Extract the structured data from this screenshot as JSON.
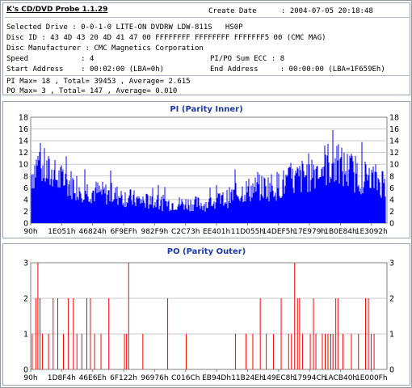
{
  "app_title": "K's CD/DVD Probe 1.1.29",
  "create_date_label": "Create Date",
  "create_date_value": ": 2004-07-05 20:18:48",
  "selected_drive": "Selected Drive : 0-0-1-0 LITE-ON DVDRW LDW-811S   HS0P",
  "disc_id": "Disc ID : 43 4D 43 20 4D 41 47 00 FFFFFFFF FFFFFFFF FFFFFFF5 00 (CMC MAG)",
  "disc_manufacturer": "Disc Manufacturer : CMC Magnetics Corporation",
  "speed": "Speed            : 4",
  "pipo_sum": "PI/PO Sum ECC : 8",
  "start_address": "Start Address    : 00:02:00 (LBA=0h)",
  "end_address": "End Address     : 00:00:00 (LBA=1F659Eh)",
  "pi_stats": "PI Max= 18 , Total= 39453 , Average= 2.615",
  "po_stats": "PO Max= 3 , Total= 147 , Average= 0.010",
  "colors": {
    "pi_bar": "#0000ff",
    "po_line": "#ff0000",
    "title": "#1b3aa8",
    "grid": "#c8c8c8"
  },
  "chart_data": [
    {
      "type": "bar",
      "title": "PI (Parity Inner)",
      "ylim": [
        0,
        18
      ],
      "yticks": [
        0,
        2,
        4,
        6,
        8,
        10,
        12,
        14,
        16,
        18
      ],
      "xticks": [
        "90h",
        "1E051h",
        "46824h",
        "6F9EFh",
        "982F9h",
        "C2C73h",
        "EE401h",
        "11D055h",
        "14DEF5h",
        "17E979h",
        "1B0E84h",
        "1E3092h"
      ],
      "grid": true,
      "color": "#0000ff",
      "profile": [
        [
          0.0,
          9
        ],
        [
          0.02,
          11
        ],
        [
          0.05,
          9
        ],
        [
          0.08,
          8
        ],
        [
          0.12,
          7
        ],
        [
          0.16,
          6
        ],
        [
          0.2,
          5.5
        ],
        [
          0.25,
          5
        ],
        [
          0.3,
          4.2
        ],
        [
          0.35,
          3.8
        ],
        [
          0.4,
          3.6
        ],
        [
          0.45,
          3.6
        ],
        [
          0.5,
          3.5
        ],
        [
          0.55,
          4.5
        ],
        [
          0.6,
          6
        ],
        [
          0.65,
          6.5
        ],
        [
          0.7,
          7
        ],
        [
          0.75,
          8
        ],
        [
          0.8,
          10
        ],
        [
          0.84,
          11
        ],
        [
          0.88,
          10
        ],
        [
          0.92,
          9
        ],
        [
          0.96,
          8
        ],
        [
          1.0,
          7.5
        ]
      ]
    },
    {
      "type": "bar",
      "title": "PO (Parity Outer)",
      "ylim": [
        0,
        3
      ],
      "yticks": [
        0,
        1,
        2,
        3
      ],
      "xticks": [
        "90h",
        "1D8F4h",
        "46E6Eh",
        "6F122h",
        "96976h",
        "C016Ch",
        "EB94Dh",
        "11B24Eh",
        "149EC8h",
        "17994Ch",
        "1ACB40h",
        "1E000Fh"
      ],
      "grid": true,
      "color": "#ff0000",
      "spikes": [
        [
          0.002,
          1
        ],
        [
          0.012,
          2
        ],
        [
          0.018,
          3
        ],
        [
          0.024,
          2
        ],
        [
          0.031,
          1
        ],
        [
          0.048,
          1
        ],
        [
          0.061,
          2
        ],
        [
          0.074,
          2
        ],
        [
          0.09,
          1
        ],
        [
          0.104,
          2
        ],
        [
          0.118,
          2
        ],
        [
          0.128,
          1
        ],
        [
          0.142,
          1
        ],
        [
          0.156,
          2
        ],
        [
          0.166,
          2
        ],
        [
          0.178,
          1
        ],
        [
          0.196,
          1
        ],
        [
          0.218,
          2
        ],
        [
          0.262,
          1
        ],
        [
          0.268,
          1
        ],
        [
          0.274,
          3
        ],
        [
          0.314,
          1
        ],
        [
          0.384,
          2
        ],
        [
          0.436,
          1
        ],
        [
          0.575,
          1
        ],
        [
          0.605,
          1
        ],
        [
          0.624,
          1
        ],
        [
          0.645,
          2
        ],
        [
          0.662,
          1
        ],
        [
          0.682,
          1
        ],
        [
          0.704,
          2
        ],
        [
          0.725,
          1
        ],
        [
          0.733,
          1
        ],
        [
          0.742,
          3
        ],
        [
          0.75,
          2
        ],
        [
          0.756,
          2
        ],
        [
          0.764,
          1
        ],
        [
          0.786,
          1
        ],
        [
          0.795,
          2
        ],
        [
          0.802,
          1
        ],
        [
          0.82,
          1
        ],
        [
          0.828,
          1
        ],
        [
          0.836,
          1
        ],
        [
          0.844,
          1
        ],
        [
          0.85,
          1
        ],
        [
          0.858,
          2
        ],
        [
          0.864,
          2
        ],
        [
          0.878,
          1
        ],
        [
          0.902,
          1
        ],
        [
          0.922,
          1
        ],
        [
          0.942,
          2
        ],
        [
          0.95,
          2
        ],
        [
          0.958,
          1
        ],
        [
          0.966,
          1
        ]
      ]
    }
  ]
}
